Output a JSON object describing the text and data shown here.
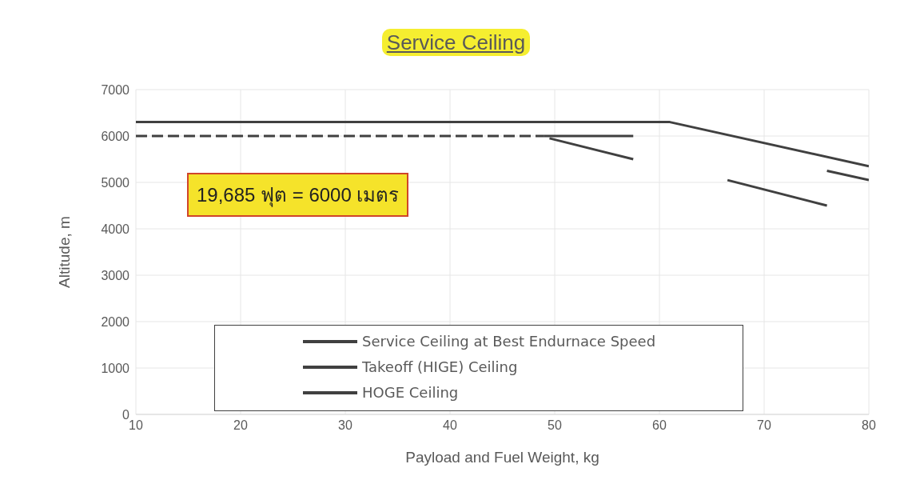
{
  "chart_data": {
    "type": "line",
    "title": "Service Ceiling",
    "xlabel": "Payload and Fuel Weight, kg",
    "ylabel": "Altitude, m",
    "xlim": [
      10,
      80
    ],
    "xticks": [
      10,
      20,
      30,
      40,
      50,
      60,
      70,
      80
    ],
    "ylim": [
      0,
      7000
    ],
    "yticks": [
      0,
      1000,
      2000,
      3000,
      4000,
      5000,
      6000,
      7000
    ],
    "grid": true,
    "legend": "bottom",
    "marker": "none",
    "annotations": [
      "19,685 ฟุต = 6000 เมตร"
    ],
    "series": [
      {
        "name": "Service Ceiling at Best Endurnace Speed",
        "color": "#404040",
        "x": [
          10,
          61,
          80
        ],
        "values": [
          6300,
          6300,
          5350
        ]
      },
      {
        "name": "Takeoff (HIGE) Ceiling",
        "color": "#404040",
        "x": [
          49.5,
          57.5,
          62,
          66.5,
          76
        ],
        "values": [
          5950,
          5500,
          null,
          5050,
          4500
        ]
      },
      {
        "name": "HOGE Ceiling",
        "color": "#404040",
        "x": [
          76,
          80
        ],
        "values": [
          5250,
          5050
        ]
      },
      {
        "color": "#404040",
        "x": [
          49,
          57.5
        ],
        "values": [
          6000,
          6000
        ]
      },
      {
        "color": "#404040",
        "line_style": "dashed",
        "x": [
          10,
          49
        ],
        "values": [
          6000,
          6000
        ]
      }
    ]
  }
}
